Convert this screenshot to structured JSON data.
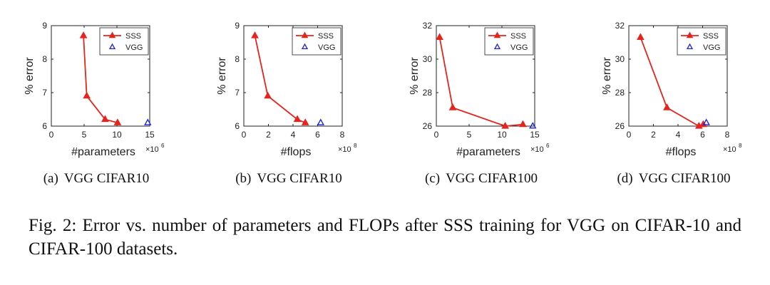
{
  "figure": {
    "caption": "Fig. 2: Error vs. number of parameters and FLOPs after SSS training for VGG on CIFAR-10 and CIFAR-100 datasets.",
    "colors": {
      "sss": "#e8231c",
      "vgg": "#1c24e0",
      "axis": "#222222"
    }
  },
  "chart_data": [
    {
      "type": "line",
      "subcaption_tag": "(a)",
      "subcaption_text": "VGG CIFAR10",
      "xlabel": "#parameters",
      "x_multiplier": "×10",
      "x_exponent": "6",
      "ylabel": "% error",
      "xlim": [
        0,
        15
      ],
      "ylim": [
        6,
        9
      ],
      "xticks": [
        0,
        5,
        10,
        15
      ],
      "yticks": [
        6,
        7,
        8,
        9
      ],
      "grid": false,
      "legend_position": "top-right",
      "series": [
        {
          "name": "SSS",
          "marker": "filled-triangle",
          "x": [
            4.9,
            5.4,
            8.2,
            10.1
          ],
          "y": [
            8.7,
            6.9,
            6.2,
            6.1
          ]
        },
        {
          "name": "VGG",
          "marker": "open-triangle",
          "x": [
            14.7
          ],
          "y": [
            6.1
          ]
        }
      ]
    },
    {
      "type": "line",
      "subcaption_tag": "(b)",
      "subcaption_text": "VGG CIFAR10",
      "xlabel": "#flops",
      "x_multiplier": "×10",
      "x_exponent": "8",
      "ylabel": "% error",
      "xlim": [
        0,
        8
      ],
      "ylim": [
        6,
        9
      ],
      "xticks": [
        0,
        2,
        4,
        6,
        8
      ],
      "yticks": [
        6,
        7,
        8,
        9
      ],
      "grid": false,
      "legend_position": "top-right",
      "series": [
        {
          "name": "SSS",
          "marker": "filled-triangle",
          "x": [
            0.9,
            1.95,
            4.35,
            5.0
          ],
          "y": [
            8.7,
            6.9,
            6.2,
            6.1
          ]
        },
        {
          "name": "VGG",
          "marker": "open-triangle",
          "x": [
            6.25
          ],
          "y": [
            6.1
          ]
        }
      ]
    },
    {
      "type": "line",
      "subcaption_tag": "(c)",
      "subcaption_text": "VGG CIFAR100",
      "xlabel": "#parameters",
      "x_multiplier": "×10",
      "x_exponent": "6",
      "ylabel": "% error",
      "xlim": [
        0,
        15
      ],
      "ylim": [
        26,
        32
      ],
      "xticks": [
        0,
        5,
        10,
        15
      ],
      "yticks": [
        26,
        28,
        30,
        32
      ],
      "grid": false,
      "legend_position": "top-right",
      "series": [
        {
          "name": "SSS",
          "marker": "filled-triangle",
          "x": [
            0.5,
            2.5,
            10.5,
            13.2
          ],
          "y": [
            31.3,
            27.1,
            26.0,
            26.1
          ]
        },
        {
          "name": "VGG",
          "marker": "open-triangle",
          "x": [
            14.7
          ],
          "y": [
            26.0
          ]
        }
      ]
    },
    {
      "type": "line",
      "subcaption_tag": "(d)",
      "subcaption_text": "VGG CIFAR100",
      "xlabel": "#flops",
      "x_multiplier": "×10",
      "x_exponent": "8",
      "ylabel": "% error",
      "xlim": [
        0,
        8
      ],
      "ylim": [
        26,
        32
      ],
      "xticks": [
        0,
        2,
        4,
        6,
        8
      ],
      "yticks": [
        26,
        28,
        30,
        32
      ],
      "grid": false,
      "legend_position": "top-right",
      "series": [
        {
          "name": "SSS",
          "marker": "filled-triangle",
          "x": [
            0.95,
            3.1,
            5.7,
            6.05
          ],
          "y": [
            31.3,
            27.1,
            26.0,
            26.1
          ]
        },
        {
          "name": "VGG",
          "marker": "open-triangle",
          "x": [
            6.3
          ],
          "y": [
            26.2
          ]
        }
      ]
    }
  ]
}
